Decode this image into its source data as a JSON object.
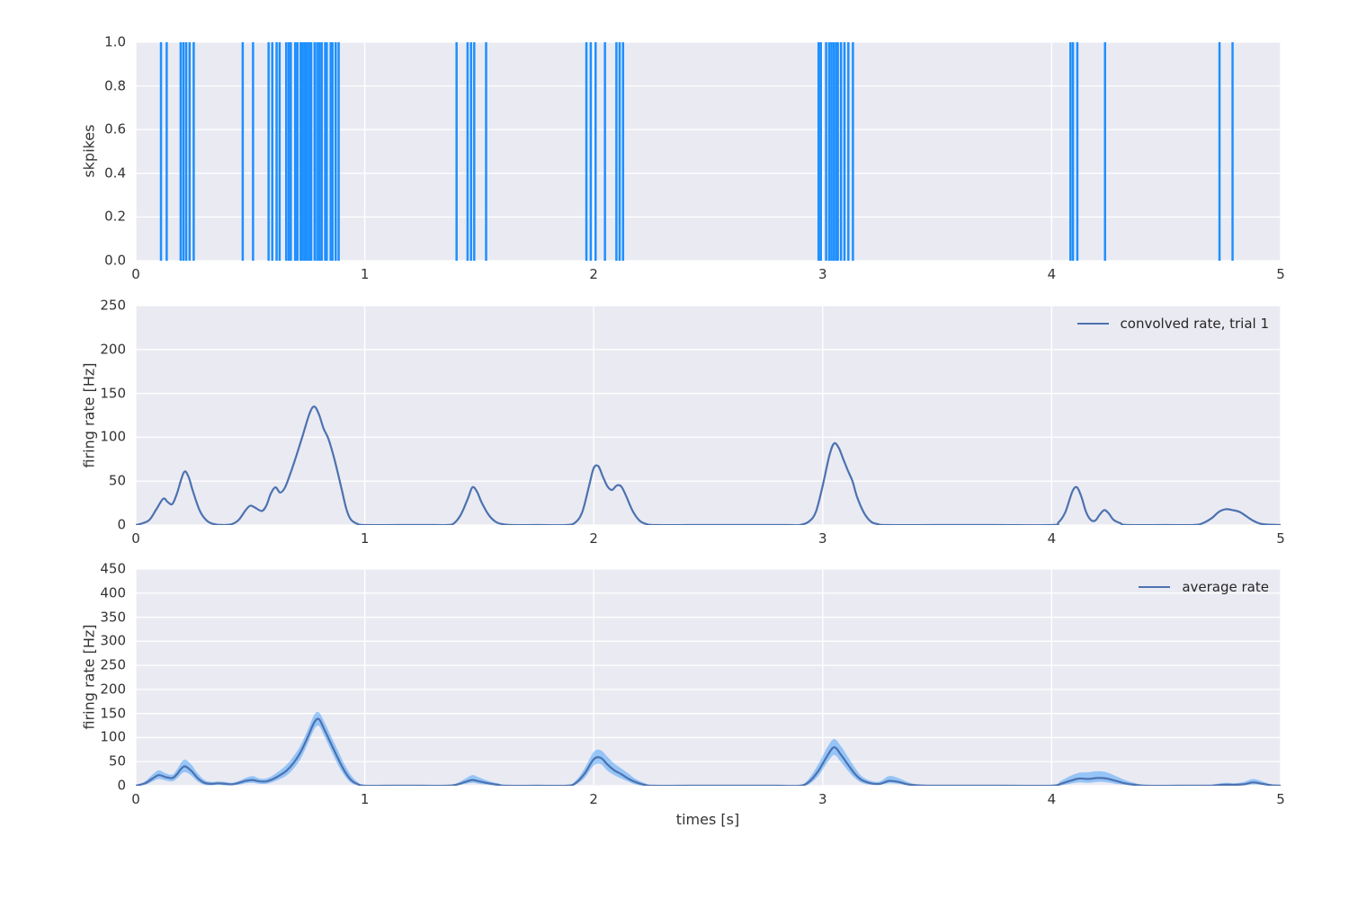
{
  "figure": {
    "background": "#ffffff",
    "plot_background": "#eaeaf2",
    "grid_color": "#ffffff",
    "text_color": "#333333",
    "spike_color": "#1e90ff",
    "line_color": "#4c72b0",
    "band_color": "rgba(30,144,255,0.42)"
  },
  "chart_data": [
    {
      "type": "scatter",
      "subtype": "spike-raster",
      "title": "",
      "xlabel": "",
      "ylabel": "skpikes",
      "xlim": [
        0,
        5
      ],
      "ylim": [
        0,
        1
      ],
      "grid": true,
      "xticks": [
        0,
        1,
        2,
        3,
        4,
        5
      ],
      "xtick_labels": [
        "0",
        "1",
        "2",
        "3",
        "4",
        "5"
      ],
      "yticks": [
        0.0,
        0.2,
        0.4,
        0.6,
        0.8,
        1.0
      ],
      "ytick_labels": [
        "0.0",
        "0.2",
        "0.4",
        "0.6",
        "0.8",
        "1.0"
      ],
      "spike_times": [
        0.11,
        0.135,
        0.196,
        0.208,
        0.22,
        0.235,
        0.253,
        0.467,
        0.512,
        0.58,
        0.596,
        0.615,
        0.628,
        0.657,
        0.668,
        0.677,
        0.696,
        0.706,
        0.72,
        0.729,
        0.738,
        0.747,
        0.757,
        0.766,
        0.781,
        0.792,
        0.802,
        0.812,
        0.827,
        0.834,
        0.851,
        0.859,
        0.873,
        0.886,
        1.401,
        1.449,
        1.464,
        1.478,
        1.53,
        1.968,
        1.987,
        2.008,
        2.049,
        2.099,
        2.113,
        2.128,
        2.982,
        2.992,
        3.015,
        3.028,
        3.038,
        3.048,
        3.058,
        3.066,
        3.08,
        3.095,
        3.112,
        3.132,
        4.082,
        4.093,
        4.112,
        4.233,
        4.733,
        4.79
      ]
    },
    {
      "type": "line",
      "title": "",
      "xlabel": "",
      "ylabel": "firing rate [Hz]",
      "xlim": [
        0,
        5
      ],
      "ylim": [
        0,
        250
      ],
      "grid": true,
      "legend_position": "upper right",
      "xticks": [
        0,
        1,
        2,
        3,
        4,
        5
      ],
      "xtick_labels": [
        "0",
        "1",
        "2",
        "3",
        "4",
        "5"
      ],
      "yticks": [
        0,
        50,
        100,
        150,
        200,
        250
      ],
      "ytick_labels": [
        "0",
        "50",
        "100",
        "150",
        "200",
        "250"
      ],
      "series": [
        {
          "name": "convolved rate, trial 1",
          "x": [
            0.0,
            0.03,
            0.06,
            0.09,
            0.12,
            0.14,
            0.16,
            0.18,
            0.21,
            0.23,
            0.25,
            0.28,
            0.31,
            0.34,
            0.38,
            0.42,
            0.45,
            0.48,
            0.5,
            0.52,
            0.55,
            0.57,
            0.59,
            0.61,
            0.63,
            0.65,
            0.67,
            0.7,
            0.73,
            0.76,
            0.78,
            0.8,
            0.82,
            0.84,
            0.86,
            0.88,
            0.9,
            0.92,
            0.94,
            0.97,
            1.0,
            1.15,
            1.3,
            1.36,
            1.39,
            1.42,
            1.45,
            1.47,
            1.49,
            1.51,
            1.54,
            1.57,
            1.6,
            1.64,
            1.75,
            1.88,
            1.92,
            1.95,
            1.98,
            2.0,
            2.02,
            2.04,
            2.06,
            2.08,
            2.1,
            2.12,
            2.14,
            2.17,
            2.2,
            2.23,
            2.27,
            2.45,
            2.65,
            2.85,
            2.9,
            2.94,
            2.97,
            3.0,
            3.03,
            3.05,
            3.07,
            3.09,
            3.11,
            3.13,
            3.15,
            3.18,
            3.21,
            3.24,
            3.28,
            3.5,
            3.75,
            4.0,
            4.03,
            4.06,
            4.09,
            4.11,
            4.13,
            4.15,
            4.17,
            4.19,
            4.21,
            4.23,
            4.25,
            4.27,
            4.3,
            4.33,
            4.5,
            4.62,
            4.66,
            4.7,
            4.73,
            4.76,
            4.79,
            4.82,
            4.85,
            4.88,
            4.92,
            5.0
          ],
          "y": [
            0,
            2,
            6,
            18,
            30,
            26,
            24,
            36,
            60,
            55,
            38,
            16,
            5,
            1,
            0,
            1,
            6,
            17,
            22,
            20,
            16,
            22,
            36,
            43,
            37,
            42,
            55,
            78,
            103,
            128,
            135,
            126,
            110,
            99,
            82,
            62,
            40,
            18,
            6,
            1,
            0,
            0,
            0,
            0,
            2,
            12,
            30,
            43,
            38,
            26,
            12,
            4,
            1,
            0,
            0,
            0,
            3,
            15,
            45,
            65,
            67,
            55,
            44,
            40,
            45,
            44,
            34,
            16,
            5,
            1,
            0,
            0,
            0,
            0,
            0,
            4,
            15,
            45,
            80,
            93,
            88,
            75,
            62,
            50,
            32,
            14,
            4,
            1,
            0,
            0,
            0,
            0,
            3,
            15,
            38,
            43,
            32,
            15,
            6,
            5,
            12,
            17,
            13,
            6,
            2,
            0,
            0,
            0,
            2,
            8,
            15,
            18,
            17,
            15,
            10,
            5,
            1,
            0
          ]
        }
      ]
    },
    {
      "type": "area",
      "subtype": "line-with-confidence-band",
      "title": "",
      "xlabel": "times [s]",
      "ylabel": "firing rate [Hz]",
      "xlim": [
        0,
        5
      ],
      "ylim": [
        0,
        450
      ],
      "grid": true,
      "legend_position": "upper right",
      "xticks": [
        0,
        1,
        2,
        3,
        4,
        5
      ],
      "xtick_labels": [
        "0",
        "1",
        "2",
        "3",
        "4",
        "5"
      ],
      "yticks": [
        0,
        50,
        100,
        150,
        200,
        250,
        300,
        350,
        400,
        450
      ],
      "ytick_labels": [
        "0",
        "50",
        "100",
        "150",
        "200",
        "250",
        "300",
        "350",
        "400",
        "450"
      ],
      "series": [
        {
          "name": "average rate",
          "x": [
            0.0,
            0.04,
            0.07,
            0.1,
            0.13,
            0.16,
            0.18,
            0.21,
            0.24,
            0.27,
            0.3,
            0.33,
            0.36,
            0.39,
            0.42,
            0.45,
            0.48,
            0.51,
            0.54,
            0.57,
            0.6,
            0.63,
            0.66,
            0.69,
            0.72,
            0.75,
            0.78,
            0.8,
            0.82,
            0.85,
            0.88,
            0.91,
            0.94,
            0.97,
            1.0,
            1.1,
            1.25,
            1.36,
            1.4,
            1.44,
            1.47,
            1.5,
            1.54,
            1.58,
            1.62,
            1.75,
            1.88,
            1.92,
            1.96,
            2.0,
            2.03,
            2.06,
            2.09,
            2.12,
            2.15,
            2.18,
            2.22,
            2.26,
            2.4,
            2.6,
            2.8,
            2.9,
            2.94,
            2.98,
            3.02,
            3.05,
            3.08,
            3.11,
            3.14,
            3.17,
            3.21,
            3.25,
            3.29,
            3.33,
            3.37,
            3.41,
            3.46,
            3.6,
            3.8,
            4.0,
            4.04,
            4.08,
            4.12,
            4.16,
            4.2,
            4.24,
            4.28,
            4.32,
            4.36,
            4.41,
            4.55,
            4.68,
            4.72,
            4.76,
            4.8,
            4.84,
            4.88,
            4.92,
            4.96,
            5.0
          ],
          "mean": [
            0,
            5,
            14,
            22,
            18,
            16,
            24,
            40,
            32,
            16,
            6,
            4,
            5,
            4,
            3,
            6,
            10,
            12,
            9,
            9,
            14,
            22,
            32,
            48,
            70,
            100,
            132,
            138,
            120,
            90,
            60,
            32,
            12,
            3,
            0,
            0,
            0,
            0,
            2,
            8,
            12,
            9,
            5,
            2,
            0,
            0,
            0,
            5,
            25,
            55,
            58,
            44,
            32,
            24,
            15,
            8,
            2,
            0,
            0,
            0,
            0,
            0,
            8,
            30,
            62,
            80,
            64,
            44,
            25,
            12,
            5,
            4,
            10,
            8,
            3,
            1,
            0,
            0,
            0,
            0,
            4,
            10,
            15,
            14,
            16,
            15,
            10,
            5,
            2,
            0,
            0,
            0,
            1,
            2,
            2,
            3,
            7,
            4,
            1,
            0
          ],
          "lo": [
            0,
            2,
            8,
            14,
            11,
            9,
            15,
            28,
            22,
            9,
            2,
            1,
            2,
            1,
            1,
            2,
            5,
            6,
            4,
            4,
            8,
            14,
            22,
            36,
            56,
            86,
            118,
            124,
            106,
            76,
            46,
            22,
            6,
            1,
            0,
            0,
            0,
            0,
            1,
            4,
            6,
            4,
            2,
            0,
            0,
            0,
            0,
            2,
            16,
            42,
            45,
            31,
            22,
            15,
            9,
            3,
            0,
            0,
            0,
            0,
            0,
            0,
            3,
            20,
            48,
            64,
            49,
            31,
            16,
            6,
            2,
            2,
            5,
            4,
            1,
            0,
            0,
            0,
            0,
            0,
            1,
            4,
            7,
            6,
            8,
            7,
            4,
            2,
            0,
            0,
            0,
            0,
            0,
            1,
            0,
            1,
            3,
            2,
            0,
            0
          ],
          "hi": [
            0,
            9,
            22,
            32,
            26,
            23,
            34,
            54,
            45,
            26,
            12,
            8,
            9,
            8,
            6,
            10,
            16,
            20,
            15,
            15,
            22,
            32,
            44,
            62,
            84,
            115,
            148,
            152,
            136,
            106,
            76,
            46,
            22,
            7,
            1,
            1,
            1,
            1,
            5,
            15,
            22,
            17,
            10,
            5,
            1,
            1,
            1,
            10,
            36,
            70,
            74,
            60,
            46,
            36,
            26,
            15,
            6,
            1,
            1,
            1,
            1,
            1,
            15,
            44,
            80,
            97,
            82,
            60,
            38,
            20,
            10,
            9,
            20,
            16,
            8,
            3,
            1,
            1,
            1,
            2,
            10,
            20,
            27,
            28,
            30,
            28,
            20,
            12,
            6,
            2,
            1,
            1,
            4,
            6,
            5,
            8,
            14,
            9,
            3,
            1
          ]
        }
      ]
    }
  ]
}
